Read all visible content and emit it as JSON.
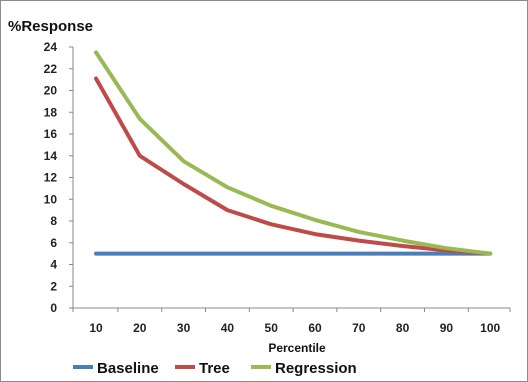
{
  "chart_data": {
    "type": "line",
    "title": "",
    "ylabel": "%Response",
    "xlabel": "Percentile",
    "x": [
      10,
      20,
      30,
      40,
      50,
      60,
      70,
      80,
      90,
      100
    ],
    "ylim": [
      0,
      24
    ],
    "yticks": [
      0,
      2,
      4,
      6,
      8,
      10,
      12,
      14,
      16,
      18,
      20,
      22,
      24
    ],
    "grid": false,
    "legend": "bottom",
    "series": [
      {
        "name": "Baseline",
        "color": "#4a7ebb",
        "values": [
          5,
          5,
          5,
          5,
          5,
          5,
          5,
          5,
          5,
          5
        ]
      },
      {
        "name": "Tree",
        "color": "#be4b48",
        "values": [
          21.1,
          14.0,
          11.4,
          9.0,
          7.7,
          6.8,
          6.2,
          5.7,
          5.3,
          5.0
        ]
      },
      {
        "name": "Regression",
        "color": "#98b954",
        "values": [
          23.5,
          17.4,
          13.5,
          11.1,
          9.4,
          8.1,
          7.0,
          6.2,
          5.5,
          5.0
        ]
      }
    ]
  }
}
